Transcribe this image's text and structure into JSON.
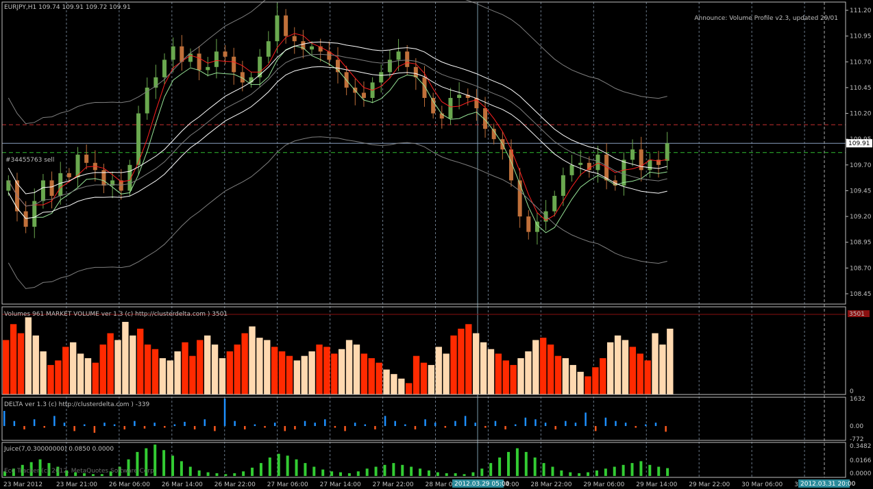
{
  "window": {
    "symbol_title": "EURJPY,H1  109.74 109.91 109.72 109.91",
    "announce": "Announce: Volume Profile v2.3, updated 29/01",
    "order_label": "#34455763 sell",
    "watermark": "Eco Tracker (c) 2012, MetaQuotes Software Corp."
  },
  "colors": {
    "background": "#000000",
    "bull_candle": "#6aa84f",
    "bear_candle": "#c0703a",
    "ma_red": "#ff2020",
    "ma_green": "#98e698",
    "band_white": "#ffffff",
    "bollinger": "#808080",
    "volume_red": "#ff2a00",
    "volume_peach": "#ffd9b0",
    "delta_blue": "#1e90ff",
    "delta_orange": "#ff5a1e",
    "juice_green": "#33cc33",
    "grid": "#6b7a8a"
  },
  "chart_data": [
    {
      "type": "candlestick",
      "title": "EURJPY,H1",
      "ohlc_last": {
        "open": 109.74,
        "high": 109.91,
        "low": 109.72,
        "close": 109.91
      },
      "current_price_label": "109.91",
      "ylim": [
        108.35,
        111.28
      ],
      "y_ticks": [
        "111.20",
        "110.95",
        "110.70",
        "110.45",
        "110.20",
        "109.95",
        "109.70",
        "109.45",
        "109.20",
        "108.95",
        "108.70",
        "108.45"
      ],
      "hlines": [
        {
          "value": 110.09,
          "color": "#c83030",
          "style": "dashed"
        },
        {
          "value": 109.82,
          "color": "#30c030",
          "style": "dashed"
        },
        {
          "value": 109.91,
          "color": "#8aa0c0",
          "style": "solid"
        }
      ],
      "closes": [
        109.55,
        109.25,
        109.1,
        109.35,
        109.55,
        109.4,
        109.62,
        109.58,
        109.8,
        109.72,
        109.65,
        109.5,
        109.55,
        109.45,
        109.7,
        110.2,
        110.45,
        110.55,
        110.72,
        110.85,
        110.7,
        110.78,
        110.62,
        110.65,
        110.8,
        110.75,
        110.6,
        110.5,
        110.55,
        110.75,
        110.9,
        111.15,
        110.95,
        110.9,
        110.82,
        110.85,
        110.8,
        110.72,
        110.6,
        110.45,
        110.4,
        110.35,
        110.5,
        110.6,
        110.72,
        110.8,
        110.65,
        110.55,
        110.35,
        110.2,
        110.15,
        110.35,
        110.38,
        110.35,
        110.25,
        110.05,
        109.95,
        109.85,
        109.55,
        109.2,
        109.05,
        109.15,
        109.25,
        109.4,
        109.6,
        109.7,
        109.72,
        109.65,
        109.8,
        109.55,
        109.5,
        109.75,
        109.85,
        109.65,
        109.75,
        109.7,
        109.91
      ],
      "x_ticks": [
        "23 Mar 2012",
        "23 Mar 21:00",
        "26 Mar 06:00",
        "26 Mar 14:00",
        "26 Mar 22:00",
        "27 Mar 06:00",
        "27 Mar 14:00",
        "27 Mar 22:00",
        "28 Mar 06:00",
        "28 Mar 14:00",
        "28 Mar 22:00",
        "29 Mar 06:00",
        "29 Mar 14:00",
        "29 Mar 22:00",
        "30 Mar 06:00",
        "30 Mar 14:00"
      ],
      "cursor_time_labels": [
        "2012.03.29 05:00",
        "2012.03.31 20:00"
      ]
    },
    {
      "type": "bar",
      "title": "Volumes 961  MARKET VOLUME ver 1.3 (c) http://clusterdelta.com ) 3501",
      "value_label_top": "3501",
      "y_ticks": [
        "0"
      ],
      "ylim": [
        0,
        3501
      ],
      "values": [
        2400,
        3100,
        2700,
        3400,
        2600,
        1900,
        1300,
        1500,
        2100,
        2300,
        1800,
        1600,
        1400,
        2200,
        2700,
        2400,
        3200,
        2600,
        2900,
        2200,
        2000,
        1600,
        1500,
        1900,
        2300,
        1700,
        2400,
        2600,
        2200,
        1600,
        1900,
        2200,
        2700,
        3000,
        2500,
        2400,
        2100,
        1900,
        1700,
        1500,
        1700,
        1900,
        2200,
        2100,
        1800,
        2000,
        2400,
        2200,
        1800,
        1600,
        1400,
        1100,
        900,
        700,
        500,
        1700,
        1400,
        1300,
        2100,
        1800,
        2600,
        2900,
        3100,
        2700,
        2300,
        2000,
        1800,
        1500,
        1300,
        1600,
        1900,
        2400,
        2500,
        2200,
        1700,
        1600,
        1300,
        1000,
        800,
        1200,
        1600,
        2300,
        2600,
        2400,
        2100,
        1800,
        1500,
        2700,
        2200,
        2900
      ],
      "bar_colors": "alternating red / peach"
    },
    {
      "type": "bar",
      "title": "DELTA ver 1.3 (c) http://clusterdelta.com ) -339",
      "y_ticks": [
        "1632",
        "0.00",
        "-772"
      ],
      "ylim": [
        -772,
        1632
      ],
      "values": [
        900,
        300,
        -200,
        400,
        -100,
        600,
        200,
        -300,
        100,
        -400,
        200,
        100,
        -200,
        300,
        -150,
        200,
        -100,
        100,
        250,
        -200,
        400,
        -300,
        1632,
        300,
        -200,
        100,
        -100,
        200,
        -300,
        -200,
        300,
        200,
        400,
        -100,
        -300,
        200,
        100,
        -200,
        600,
        300,
        100,
        -200,
        400,
        200,
        -100,
        300,
        600,
        200,
        -100,
        300,
        -200,
        100,
        500,
        400,
        200,
        -200,
        300,
        200,
        800,
        -300,
        500,
        300,
        200,
        -100,
        100,
        200,
        -339
      ]
    },
    {
      "type": "bar",
      "title": "Juice(7,0.30000000) 0.0850 0.0000",
      "y_ticks": [
        "0.3482",
        "0.0166",
        "0.0000"
      ],
      "ylim": [
        0,
        0.3482
      ],
      "values": [
        0.05,
        0.08,
        0.12,
        0.15,
        0.18,
        0.14,
        0.1,
        0.06,
        0.04,
        0.03,
        0.02,
        0.02,
        0.05,
        0.1,
        0.18,
        0.26,
        0.3,
        0.34,
        0.28,
        0.22,
        0.16,
        0.1,
        0.06,
        0.04,
        0.03,
        0.02,
        0.03,
        0.05,
        0.09,
        0.14,
        0.2,
        0.24,
        0.22,
        0.18,
        0.14,
        0.1,
        0.07,
        0.05,
        0.04,
        0.03,
        0.05,
        0.08,
        0.1,
        0.12,
        0.14,
        0.12,
        0.1,
        0.08,
        0.06,
        0.04,
        0.03,
        0.03,
        0.02,
        0.04,
        0.08,
        0.14,
        0.2,
        0.26,
        0.3,
        0.26,
        0.2,
        0.14,
        0.1,
        0.06,
        0.04,
        0.03,
        0.04,
        0.06,
        0.08,
        0.1,
        0.12,
        0.14,
        0.16,
        0.12,
        0.1,
        0.085
      ]
    }
  ]
}
